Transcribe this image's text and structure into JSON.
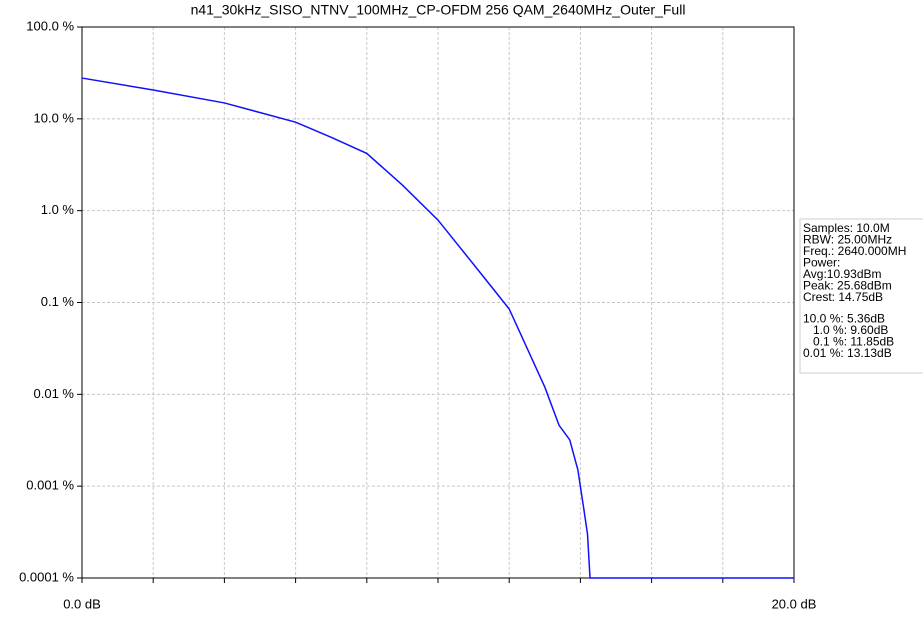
{
  "chart_data": {
    "type": "line",
    "title": "n41_30kHz_SISO_NTNV_100MHz_CP-OFDM 256 QAM_2640MHz_Outer_Full",
    "log_y": true,
    "grid": true,
    "xlim": [
      0,
      20
    ],
    "xticks": [
      {
        "value": 0,
        "label": "0.0 dB"
      },
      {
        "value": 20,
        "label": "20.0 dB"
      }
    ],
    "x_minor_ticks": [
      2,
      4,
      6,
      8,
      10,
      12,
      14,
      16,
      18
    ],
    "ylim": [
      0.0001,
      100
    ],
    "yticks": [
      {
        "value": 100,
        "label": "100.0 %"
      },
      {
        "value": 10,
        "label": "10.0 %"
      },
      {
        "value": 1,
        "label": "1.0 %"
      },
      {
        "value": 0.1,
        "label": "0.1 %"
      },
      {
        "value": 0.01,
        "label": "0.01 %"
      },
      {
        "value": 0.001,
        "label": "0.001 %"
      },
      {
        "value": 0.0001,
        "label": "0.0001 %"
      }
    ],
    "x": [
      0,
      2,
      4,
      6,
      7,
      8,
      9,
      10,
      11,
      12,
      13,
      13.4,
      13.7,
      13.93,
      14.1,
      14.2,
      14.27,
      20
    ],
    "series": [
      {
        "color": "#1010ff",
        "values": [
          27.8,
          20.6,
          14.9,
          9.2,
          6.3,
          4.2,
          1.9,
          0.79,
          0.26,
          0.085,
          0.012,
          0.0046,
          0.0032,
          0.0015,
          0.00055,
          0.0003,
          0.0001,
          0.0001
        ]
      }
    ],
    "annotations": [
      "Samples: 10.0M",
      "RBW: 25.00MHz",
      "Freq.: 2640.000MH",
      "Power:",
      "Avg:10.93dBm",
      "Peak: 25.68dBm",
      "Crest: 14.75dB",
      "10.0 %: 5.36dB",
      "   1.0 %: 9.60dB",
      "   0.1 %: 11.85dB",
      "0.01 %: 13.13dB"
    ]
  }
}
